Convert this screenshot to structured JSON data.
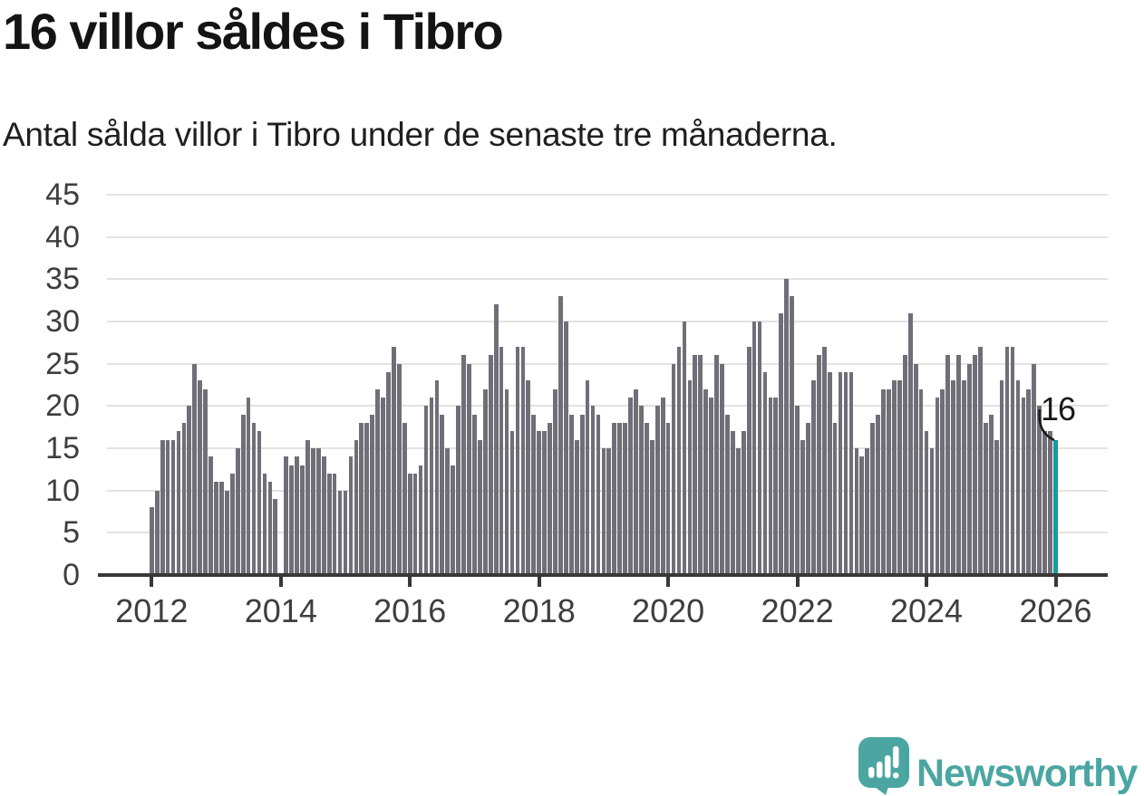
{
  "header": {
    "title": "16 villor såldes i Tibro",
    "subtitle": "Antal sålda villor i Tibro under de senaste tre månaderna."
  },
  "annotation": {
    "last_value_label": "16"
  },
  "logo": {
    "text": "Newsworthy"
  },
  "colors": {
    "bar": "#706f78",
    "highlight_bar": "#0f9da1",
    "axis": "#383838",
    "gridline": "#e2e2e2",
    "tick_text": "#3e3e42",
    "logo_teal": "#4ba6a2",
    "annotation_text": "#191919"
  },
  "chart_data": {
    "type": "bar",
    "title": "16 villor såldes i Tibro",
    "subtitle": "Antal sålda villor i Tibro under de senaste tre månaderna.",
    "frequency": "monthly",
    "x_start": "2012-01",
    "x_end": "2026-01",
    "ylim": [
      0,
      45
    ],
    "grid": true,
    "y_ticks": [
      0,
      5,
      10,
      15,
      20,
      25,
      30,
      35,
      40,
      45
    ],
    "x_tick_labels": [
      "2012",
      "2014",
      "2016",
      "2018",
      "2020",
      "2022",
      "2024",
      "2026"
    ],
    "missing_month": "2014-01",
    "values_by_year": {
      "2012": [
        8,
        10,
        16,
        16,
        16,
        17,
        18,
        20,
        25,
        23,
        22,
        14
      ],
      "2013": [
        11,
        11,
        10,
        12,
        15,
        19,
        21,
        18,
        17,
        12,
        11,
        9
      ],
      "2014": [
        0,
        14,
        13,
        14,
        13,
        16,
        15,
        15,
        14,
        12,
        12,
        10
      ],
      "2015": [
        10,
        14,
        16,
        18,
        18,
        19,
        22,
        21,
        24,
        27,
        25,
        18
      ],
      "2016": [
        12,
        12,
        13,
        20,
        21,
        23,
        19,
        15,
        13,
        20,
        26,
        25
      ],
      "2017": [
        19,
        16,
        22,
        26,
        32,
        27,
        22,
        17,
        27,
        27,
        23,
        19
      ],
      "2018": [
        17,
        17,
        18,
        22,
        33,
        30,
        19,
        16,
        19,
        23,
        20,
        19
      ],
      "2019": [
        15,
        15,
        18,
        18,
        18,
        21,
        22,
        20,
        18,
        16,
        20,
        21
      ],
      "2020": [
        18,
        25,
        27,
        30,
        23,
        26,
        26,
        22,
        21,
        26,
        25,
        19
      ],
      "2021": [
        17,
        15,
        17,
        27,
        30,
        30,
        24,
        21,
        21,
        31,
        35,
        33
      ],
      "2022": [
        20,
        16,
        18,
        23,
        26,
        27,
        24,
        18,
        24,
        24,
        24,
        15
      ],
      "2023": [
        14,
        15,
        18,
        19,
        22,
        22,
        23,
        23,
        26,
        31,
        25,
        22
      ],
      "2024": [
        17,
        15,
        21,
        22,
        26,
        23,
        26,
        23,
        25,
        26,
        27,
        18
      ],
      "2025": [
        19,
        16,
        23,
        27,
        27,
        23,
        21,
        22,
        25,
        20,
        17,
        17
      ],
      "2026": [
        16
      ]
    },
    "last_point": {
      "month": "2026-01",
      "value": 16,
      "highlighted": true
    }
  }
}
